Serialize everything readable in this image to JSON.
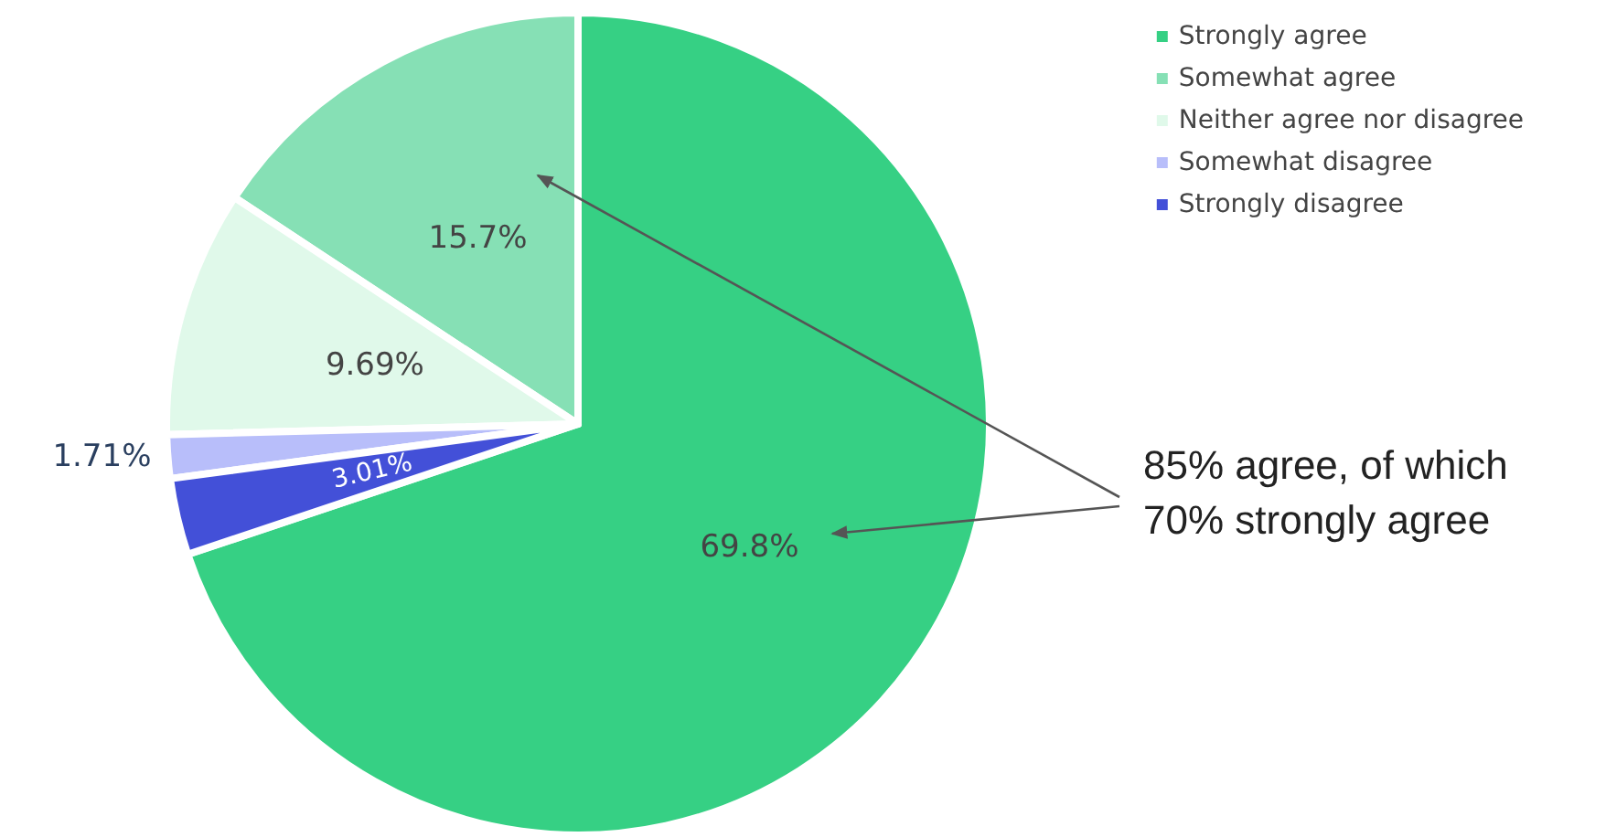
{
  "chart_data": {
    "type": "pie",
    "categories": [
      "Strongly agree",
      "Somewhat agree",
      "Neither agree nor disagree",
      "Somewhat disagree",
      "Strongly disagree"
    ],
    "values": [
      69.8,
      15.7,
      9.69,
      1.71,
      3.01
    ],
    "colors": [
      "#36d084",
      "#86e0b5",
      "#e0f9ea",
      "#b8befa",
      "#4350d8"
    ],
    "value_labels": [
      "69.8%",
      "15.7%",
      "9.69%",
      "1.71%",
      "3.01%"
    ],
    "legend": "top right",
    "annotations": [
      "85% agree, of which\n70% strongly agree"
    ]
  }
}
